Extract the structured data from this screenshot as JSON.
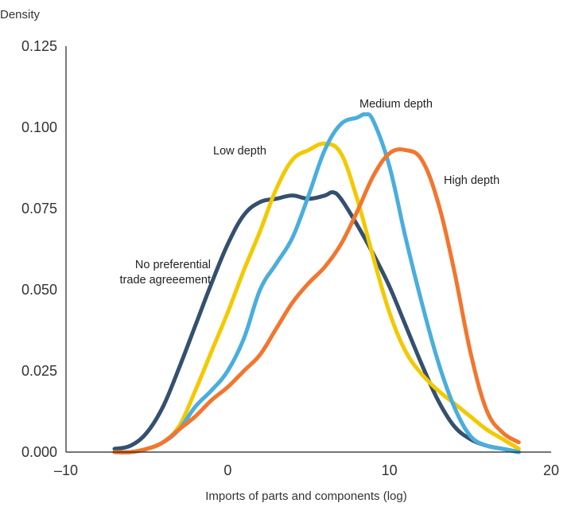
{
  "chart_data": {
    "type": "line",
    "title": "",
    "xlabel": "Imports of parts and components (log)",
    "ylabel": "Density",
    "xlim": [
      -10,
      20
    ],
    "ylim": [
      0,
      0.125
    ],
    "x_ticks": [
      -10,
      0,
      10,
      20
    ],
    "x_tick_labels": [
      "–10",
      "0",
      "10",
      "20"
    ],
    "y_ticks": [
      0,
      0.025,
      0.05,
      0.075,
      0.1,
      0.125
    ],
    "y_tick_labels": [
      "0.000",
      "0.025",
      "0.050",
      "0.075",
      "0.100",
      "0.125"
    ],
    "grid": false,
    "legend": "none (direct labels)",
    "series": [
      {
        "name": "No preferential trade agreement",
        "label_lines": [
          "No preferential",
          "trade agreeement"
        ],
        "color": "#34506e",
        "x": [
          -7,
          -6,
          -5,
          -4,
          -3,
          -2,
          -1,
          0,
          1,
          2,
          3,
          4,
          5,
          6,
          6.5,
          7,
          8,
          9,
          10,
          11,
          12,
          13,
          14,
          15,
          16,
          17,
          18
        ],
        "y": [
          0.001,
          0.002,
          0.006,
          0.014,
          0.026,
          0.039,
          0.052,
          0.064,
          0.073,
          0.077,
          0.078,
          0.079,
          0.078,
          0.079,
          0.08,
          0.078,
          0.07,
          0.061,
          0.051,
          0.039,
          0.027,
          0.016,
          0.008,
          0.004,
          0.002,
          0.001,
          0.0
        ]
      },
      {
        "name": "Low depth",
        "label_lines": [
          "Low depth"
        ],
        "color": "#f3c900",
        "x": [
          -7,
          -6,
          -5,
          -4,
          -3,
          -2,
          -1,
          0,
          1,
          2,
          3,
          4,
          5,
          6,
          7,
          8,
          9,
          10,
          11,
          12,
          13,
          14,
          15,
          16,
          17,
          18
        ],
        "y": [
          0.0,
          0.0,
          0.001,
          0.003,
          0.008,
          0.019,
          0.031,
          0.043,
          0.056,
          0.068,
          0.081,
          0.09,
          0.093,
          0.095,
          0.092,
          0.078,
          0.06,
          0.043,
          0.031,
          0.024,
          0.019,
          0.015,
          0.011,
          0.007,
          0.004,
          0.001
        ]
      },
      {
        "name": "Medium depth",
        "label_lines": [
          "Medium depth"
        ],
        "color": "#4aaedd",
        "x": [
          -7,
          -6,
          -5,
          -4,
          -3,
          -2,
          -1,
          0,
          1,
          2,
          3,
          4,
          5,
          6,
          7,
          8,
          8.5,
          9,
          10,
          11,
          12,
          13,
          14,
          15,
          16,
          17,
          18
        ],
        "y": [
          0.0,
          0.0,
          0.001,
          0.003,
          0.007,
          0.014,
          0.019,
          0.025,
          0.035,
          0.05,
          0.058,
          0.066,
          0.079,
          0.093,
          0.101,
          0.103,
          0.104,
          0.102,
          0.088,
          0.066,
          0.046,
          0.028,
          0.014,
          0.005,
          0.002,
          0.001,
          0.0
        ]
      },
      {
        "name": "High depth",
        "label_lines": [
          "High depth"
        ],
        "color": "#f2762e",
        "x": [
          -7,
          -6,
          -5,
          -4,
          -3,
          -2,
          -1,
          0,
          1,
          2,
          3,
          4,
          5,
          6,
          7,
          8,
          9,
          10,
          11,
          12,
          13,
          14,
          15,
          16,
          17,
          18
        ],
        "y": [
          0.0,
          0.0,
          0.001,
          0.003,
          0.007,
          0.011,
          0.016,
          0.02,
          0.025,
          0.03,
          0.038,
          0.046,
          0.052,
          0.057,
          0.064,
          0.074,
          0.085,
          0.092,
          0.093,
          0.09,
          0.077,
          0.056,
          0.031,
          0.013,
          0.006,
          0.003
        ]
      }
    ]
  }
}
